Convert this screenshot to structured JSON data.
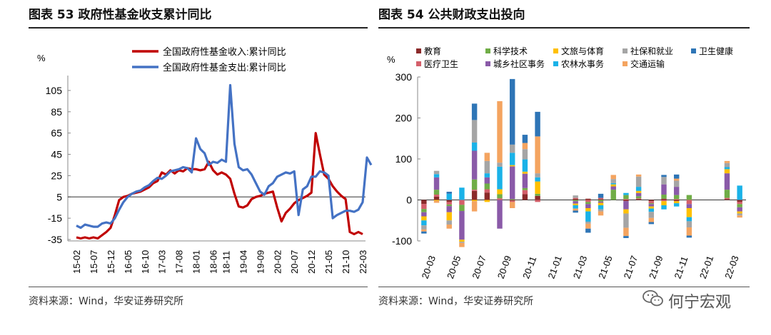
{
  "left": {
    "title": "图表 53  政府性基金收支累计同比",
    "source": "资料来源：Wind，华安证券研究所"
  },
  "right": {
    "title": "图表 54  公共财政支出投向",
    "source": "资料来源：Wind，华安证券研究所"
  },
  "watermark": "何宁宏观",
  "chart_data": [
    {
      "type": "line",
      "title": "图表 53  政府性基金收支累计同比",
      "ylabel": "%",
      "ylim": [
        -35,
        115
      ],
      "yticks": [
        -35,
        -15,
        5,
        25,
        45,
        65,
        85,
        105
      ],
      "xticks": [
        "15-02",
        "15-07",
        "15-12",
        "16-05",
        "16-10",
        "17-03",
        "17-08",
        "18-01",
        "18-06",
        "18-11",
        "19-04",
        "19-09",
        "20-02",
        "20-07",
        "20-12",
        "21-05",
        "21-10",
        "22-03"
      ],
      "series": [
        {
          "name": "全国政府性基金收入:累计同比",
          "color": "#c00000",
          "values": [
            -33,
            -34,
            -33,
            -34,
            -33,
            -34,
            -31,
            -28,
            -24,
            -12,
            2,
            5,
            6,
            8,
            9,
            10,
            12,
            14,
            18,
            20,
            28,
            26,
            30,
            27,
            30,
            29,
            32,
            31,
            31,
            30,
            31,
            38,
            30,
            26,
            28,
            26,
            22,
            8,
            -4,
            -5,
            -3,
            3,
            5,
            6,
            8,
            9,
            10,
            -5,
            -18,
            -10,
            -6,
            -1,
            2,
            4,
            6,
            9,
            65,
            45,
            26,
            22,
            15,
            10,
            6,
            3,
            -28,
            -30,
            -28,
            -30
          ]
        },
        {
          "name": "全国政府性基金支出:累计同比",
          "color": "#4472c4",
          "values": [
            -22,
            -24,
            -21,
            -22,
            -23,
            -23,
            -20,
            -19,
            -20,
            -15,
            -7,
            0,
            5,
            8,
            10,
            11,
            14,
            16,
            20,
            23,
            22,
            25,
            29,
            30,
            31,
            33,
            32,
            28,
            60,
            50,
            46,
            35,
            38,
            37,
            40,
            38,
            110,
            55,
            33,
            30,
            31,
            26,
            18,
            10,
            7,
            15,
            18,
            24,
            26,
            28,
            27,
            29,
            -12,
            12,
            15,
            24,
            24,
            29,
            28,
            25,
            -15,
            -12,
            -10,
            -8,
            -8,
            -9,
            -7,
            0,
            42,
            35
          ]
        }
      ]
    },
    {
      "type": "bar",
      "stacked": true,
      "title": "图表 54  公共财政支出投向",
      "ylabel": "%",
      "ylim": [
        -100,
        300
      ],
      "yticks": [
        -100,
        0,
        100,
        200,
        300
      ],
      "xticks": [
        "20-03",
        "20-05",
        "20-07",
        "20-09",
        "20-11",
        "21-01",
        "21-03",
        "21-05",
        "21-07",
        "21-09",
        "21-11",
        "22-01",
        "22-03"
      ],
      "categories": [
        "20-03",
        "20-04",
        "20-05",
        "20-06",
        "20-07",
        "20-08",
        "20-09",
        "20-10",
        "20-11",
        "20-12",
        "21-01",
        "21-02",
        "21-03",
        "21-04",
        "21-05",
        "21-06",
        "21-07",
        "21-08",
        "21-09",
        "21-10",
        "21-11",
        "21-12",
        "22-01",
        "22-02",
        "22-03",
        "22-04"
      ],
      "series": [
        {
          "name": "教育",
          "color": "#8b2a2a",
          "values": [
            -10,
            8,
            -5,
            0,
            22,
            18,
            0,
            -2,
            14,
            10,
            0,
            0,
            3,
            3,
            2,
            0,
            -3,
            2,
            -3,
            3,
            -3,
            0,
            0,
            0,
            2,
            -5
          ]
        },
        {
          "name": "医疗卫生",
          "color": "#d45f6a",
          "values": [
            -12,
            5,
            -6,
            -12,
            3,
            8,
            4,
            -3,
            10,
            -5,
            0,
            0,
            2,
            -5,
            3,
            0,
            2,
            2,
            -5,
            -3,
            2,
            -10,
            0,
            0,
            3,
            -5
          ]
        },
        {
          "name": "科学技术",
          "color": "#70ad47",
          "values": [
            -8,
            12,
            -4,
            -15,
            25,
            14,
            10,
            2,
            5,
            5,
            0,
            0,
            -3,
            -5,
            -4,
            25,
            10,
            5,
            -2,
            10,
            10,
            12,
            0,
            0,
            20,
            -8
          ]
        },
        {
          "name": "城乡社区事务",
          "color": "#8a5aa8",
          "values": [
            -10,
            30,
            -15,
            -70,
            70,
            15,
            -70,
            80,
            35,
            0,
            0,
            0,
            -6,
            -10,
            -3,
            8,
            -20,
            8,
            -6,
            25,
            20,
            -10,
            0,
            0,
            40,
            -10
          ]
        },
        {
          "name": "文旅与体育",
          "color": "#ffc000",
          "values": [
            -10,
            -2,
            -20,
            -5,
            -3,
            -5,
            12,
            3,
            5,
            30,
            0,
            0,
            -4,
            -8,
            -6,
            5,
            -10,
            5,
            -5,
            -10,
            -5,
            -22,
            0,
            0,
            10,
            -5
          ]
        },
        {
          "name": "农林水事务",
          "color": "#1ab2e8",
          "values": [
            -12,
            8,
            15,
            30,
            20,
            10,
            55,
            30,
            30,
            10,
            0,
            0,
            -8,
            -25,
            -10,
            3,
            5,
            10,
            -8,
            -10,
            -8,
            -10,
            0,
            0,
            5,
            35
          ]
        },
        {
          "name": "社保和就业",
          "color": "#a5a5a5",
          "values": [
            -10,
            8,
            -10,
            -3,
            55,
            30,
            10,
            20,
            25,
            10,
            0,
            0,
            6,
            -5,
            -5,
            10,
            -35,
            25,
            -15,
            18,
            15,
            -15,
            0,
            0,
            10,
            -5
          ]
        },
        {
          "name": "交通运输",
          "color": "#f4a460",
          "values": [
            -5,
            -5,
            -10,
            -10,
            -25,
            20,
            150,
            -15,
            15,
            90,
            0,
            0,
            -5,
            -12,
            -10,
            10,
            -20,
            5,
            -10,
            0,
            5,
            -20,
            0,
            0,
            5,
            -5
          ]
        },
        {
          "name": "卫生健康",
          "color": "#2e75b6",
          "values": [
            -5,
            0,
            5,
            0,
            40,
            0,
            0,
            160,
            20,
            60,
            0,
            0,
            -5,
            -10,
            10,
            0,
            -5,
            0,
            -5,
            5,
            10,
            -5,
            0,
            0,
            0,
            0
          ]
        }
      ]
    }
  ]
}
